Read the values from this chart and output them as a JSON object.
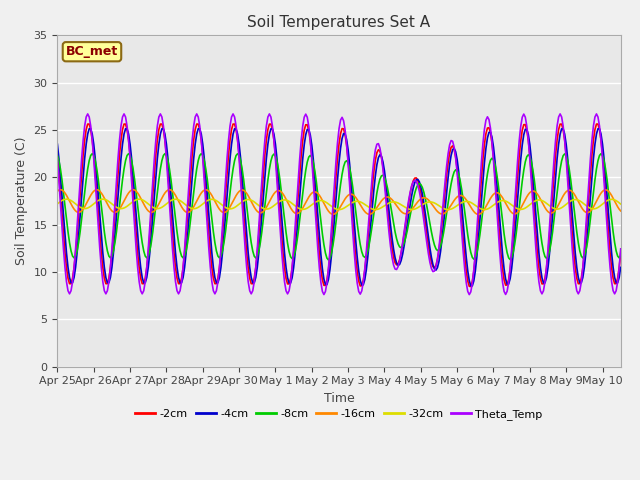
{
  "title": "Soil Temperatures Set A",
  "xlabel": "Time",
  "ylabel": "Soil Temperature (C)",
  "ylim": [
    0,
    35
  ],
  "yticks": [
    0,
    5,
    10,
    15,
    20,
    25,
    30,
    35
  ],
  "label_annotation": "BC_met",
  "series_colors": {
    "-2cm": "#ff0000",
    "-4cm": "#0000cc",
    "-8cm": "#00cc00",
    "-16cm": "#ff8800",
    "-32cm": "#dddd00",
    "Theta_Temp": "#aa00ff"
  },
  "bg_inner": "#e8e8e8",
  "bg_outer": "#f0f0f0",
  "grid_color": "#ffffff",
  "tick_dates": [
    "Apr 25",
    "Apr 26",
    "Apr 27",
    "Apr 28",
    "Apr 29",
    "Apr 30",
    "May 1",
    "May 2",
    "May 3",
    "May 4",
    "May 5",
    "May 6",
    "May 7",
    "May 8",
    "May 9",
    "May 10"
  ]
}
